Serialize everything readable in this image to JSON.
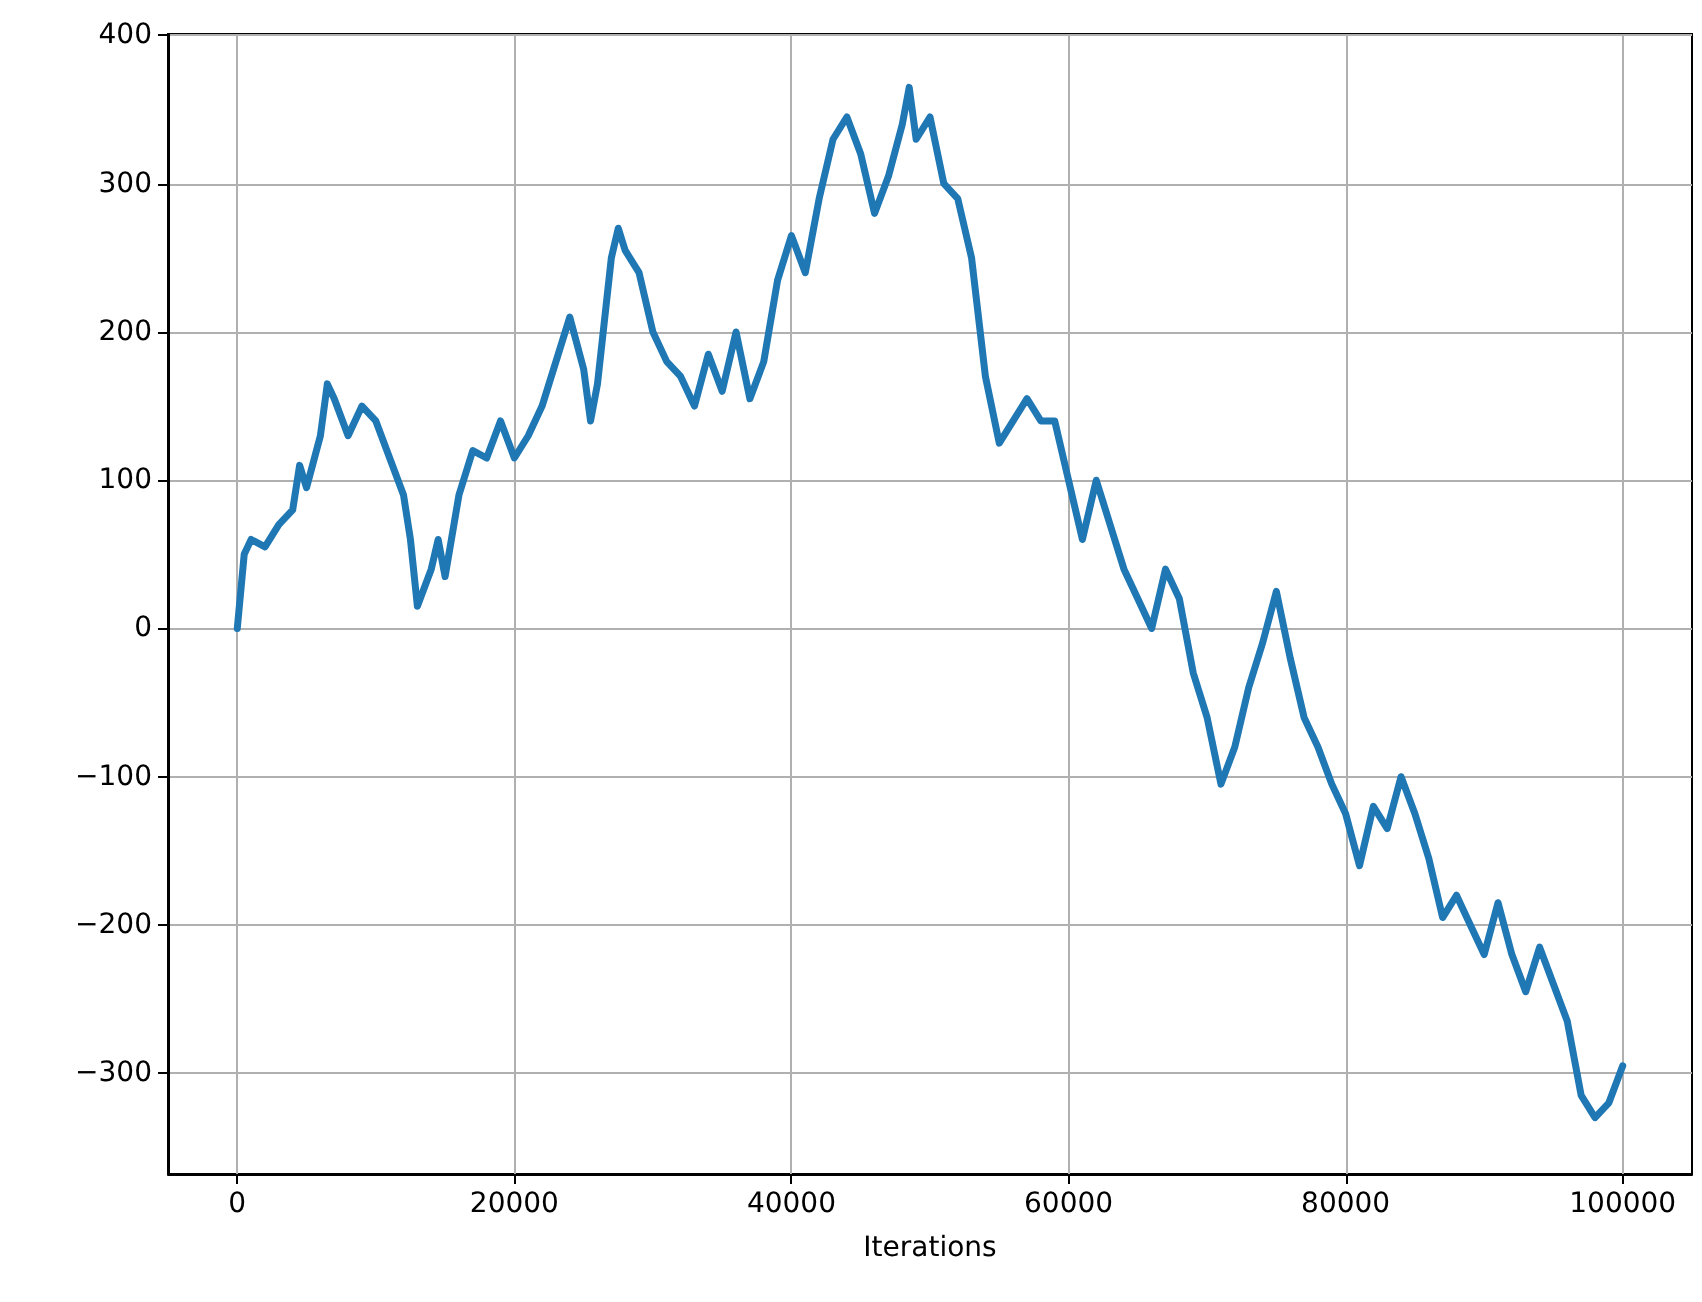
{
  "chart_data": {
    "type": "line",
    "xlabel": "Iterations",
    "grid": true,
    "line_style": "solid",
    "marker": "none",
    "xlim": [
      -5000,
      105000
    ],
    "xticks": [
      0,
      20000,
      40000,
      60000,
      80000,
      100000
    ],
    "ylim": [
      -368,
      401
    ],
    "yticks": [
      -300,
      -200,
      -100,
      0,
      100,
      200,
      300,
      400
    ],
    "series": [
      {
        "color": "#1f77b4",
        "x": [
          0,
          500,
          1000,
          2000,
          3000,
          4000,
          4500,
          5000,
          6000,
          6500,
          7000,
          8000,
          9000,
          10000,
          11000,
          12000,
          12500,
          13000,
          14000,
          14500,
          15000,
          16000,
          17000,
          18000,
          19000,
          20000,
          21000,
          22000,
          23000,
          24000,
          25000,
          25500,
          26000,
          27000,
          27500,
          28000,
          29000,
          30000,
          31000,
          32000,
          33000,
          34000,
          35000,
          36000,
          37000,
          38000,
          39000,
          40000,
          41000,
          42000,
          43000,
          44000,
          45000,
          46000,
          47000,
          48000,
          48500,
          49000,
          50000,
          51000,
          52000,
          53000,
          54000,
          55000,
          56000,
          57000,
          58000,
          59000,
          60000,
          61000,
          62000,
          63000,
          64000,
          65000,
          66000,
          67000,
          68000,
          69000,
          70000,
          71000,
          72000,
          73000,
          74000,
          75000,
          76000,
          77000,
          78000,
          79000,
          80000,
          81000,
          82000,
          83000,
          84000,
          85000,
          86000,
          87000,
          88000,
          89000,
          90000,
          91000,
          92000,
          93000,
          94000,
          95000,
          96000,
          97000,
          98000,
          99000,
          100000
        ],
        "values": [
          0,
          50,
          60,
          55,
          70,
          80,
          110,
          95,
          130,
          165,
          155,
          130,
          150,
          140,
          115,
          90,
          60,
          15,
          40,
          60,
          35,
          90,
          120,
          115,
          140,
          115,
          130,
          150,
          180,
          210,
          175,
          140,
          165,
          250,
          270,
          255,
          240,
          200,
          180,
          170,
          150,
          185,
          160,
          200,
          155,
          180,
          235,
          265,
          240,
          290,
          330,
          345,
          320,
          280,
          305,
          340,
          365,
          330,
          345,
          300,
          290,
          250,
          170,
          125,
          140,
          155,
          140,
          140,
          100,
          60,
          100,
          70,
          40,
          20,
          0,
          40,
          20,
          -30,
          -60,
          -105,
          -80,
          -40,
          -10,
          25,
          -20,
          -60,
          -80,
          -105,
          -125,
          -160,
          -120,
          -135,
          -100,
          -125,
          -155,
          -195,
          -180,
          -200,
          -220,
          -185,
          -220,
          -245,
          -215,
          -240,
          -265,
          -315,
          -330,
          -320,
          -295
        ]
      }
    ]
  }
}
